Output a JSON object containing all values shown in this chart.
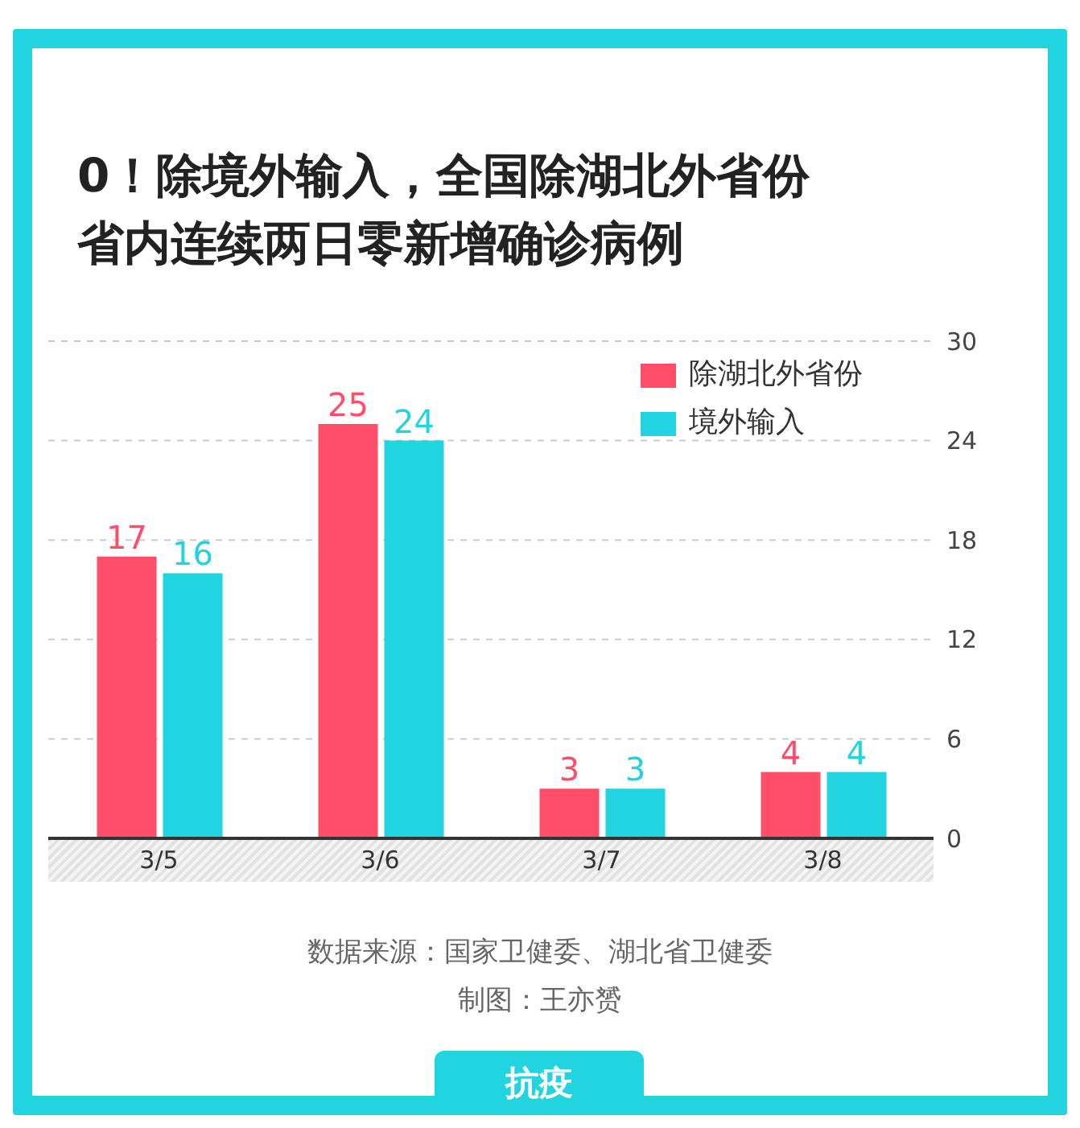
{
  "chart_data": {
    "type": "bar",
    "title": "0！除境外输入，全国除湖北外省份省内连续两日零新增确诊病例",
    "categories": [
      "3/5",
      "3/6",
      "3/7",
      "3/8"
    ],
    "series": [
      {
        "name": "除湖北外省份",
        "color": "#ff4d6a",
        "values": [
          17,
          25,
          3,
          4
        ]
      },
      {
        "name": "境外输入",
        "color": "#22d3e0",
        "values": [
          16,
          24,
          3,
          4
        ]
      }
    ],
    "ylim": [
      0,
      30
    ],
    "yticks": [
      0,
      6,
      12,
      18,
      24,
      30
    ],
    "grid": "y",
    "legend": "top right",
    "data_labels": true,
    "annotations": [
      "数据来源：国家卫健委、湖北省卫健委",
      "制图：王亦赟",
      "抗疫"
    ]
  }
}
